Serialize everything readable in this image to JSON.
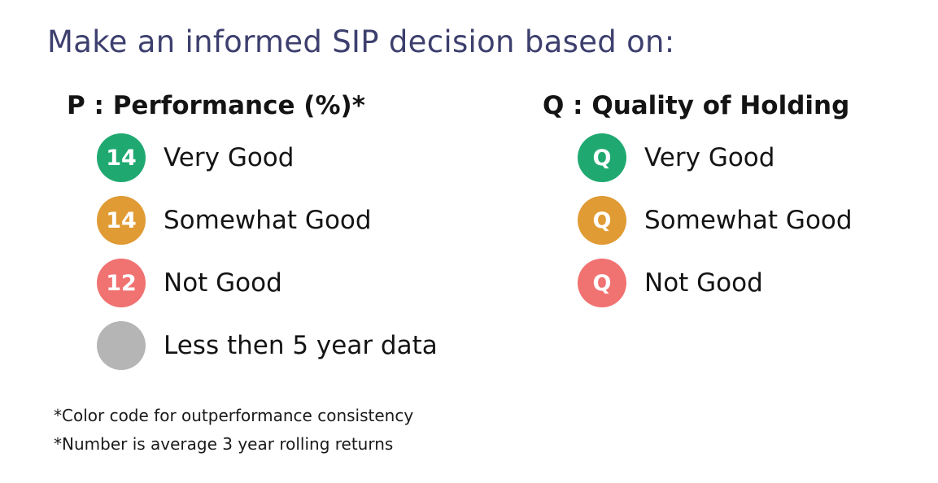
{
  "title": "Make an informed SIP decision based on:",
  "performance": {
    "heading": "P : Performance (%)*",
    "items": [
      {
        "badge": "14",
        "label": "Very Good",
        "color": "#1fa971"
      },
      {
        "badge": "14",
        "label": "Somewhat Good",
        "color": "#e09b34"
      },
      {
        "badge": "12",
        "label": "Not Good",
        "color": "#f07271"
      },
      {
        "badge": "",
        "label": "Less then 5 year data",
        "color": "#b5b5b5"
      }
    ]
  },
  "quality": {
    "heading": "Q : Quality of Holding",
    "items": [
      {
        "badge": "Q",
        "label": "Very Good",
        "color": "#1fa971"
      },
      {
        "badge": "Q",
        "label": "Somewhat Good",
        "color": "#e09b34"
      },
      {
        "badge": "Q",
        "label": "Not Good",
        "color": "#f07271"
      }
    ]
  },
  "footnotes": [
    "*Color code for outperformance consistency",
    "*Number is average 3 year rolling returns"
  ]
}
